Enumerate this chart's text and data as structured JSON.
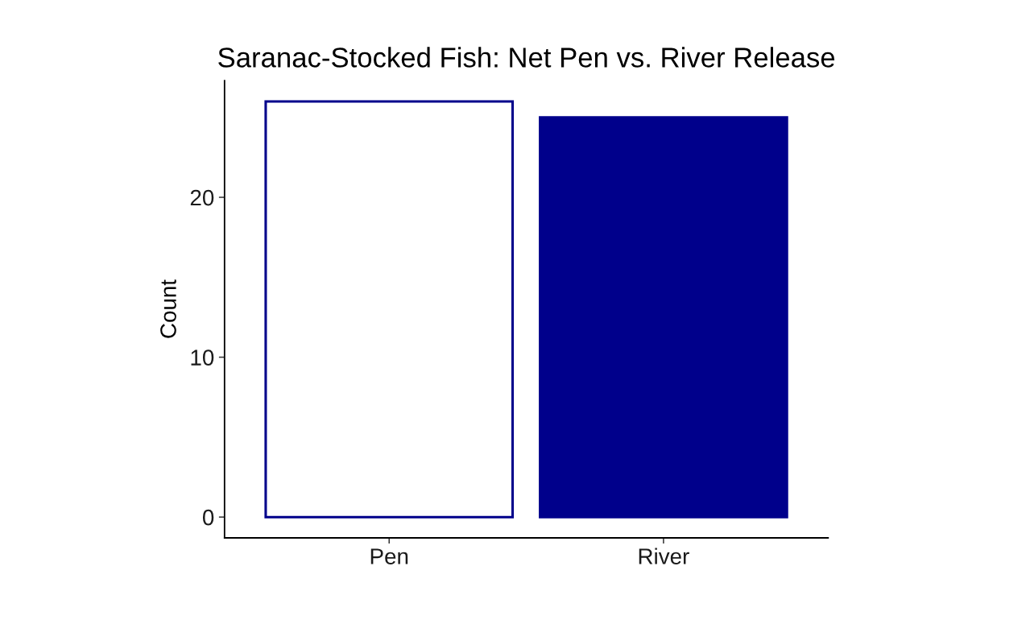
{
  "chart_data": {
    "type": "bar",
    "title": "Saranac-Stocked Fish: Net Pen vs. River Release",
    "ylabel": "Count",
    "categories": [
      "Pen",
      "River"
    ],
    "values": [
      26,
      25
    ],
    "colors": [
      "#ffffff",
      "#00008b"
    ],
    "color": "#00008b",
    "ylim": [
      -1.3,
      27.3
    ],
    "yticks": [
      0,
      10,
      20
    ],
    "grid": false,
    "legend": false
  }
}
